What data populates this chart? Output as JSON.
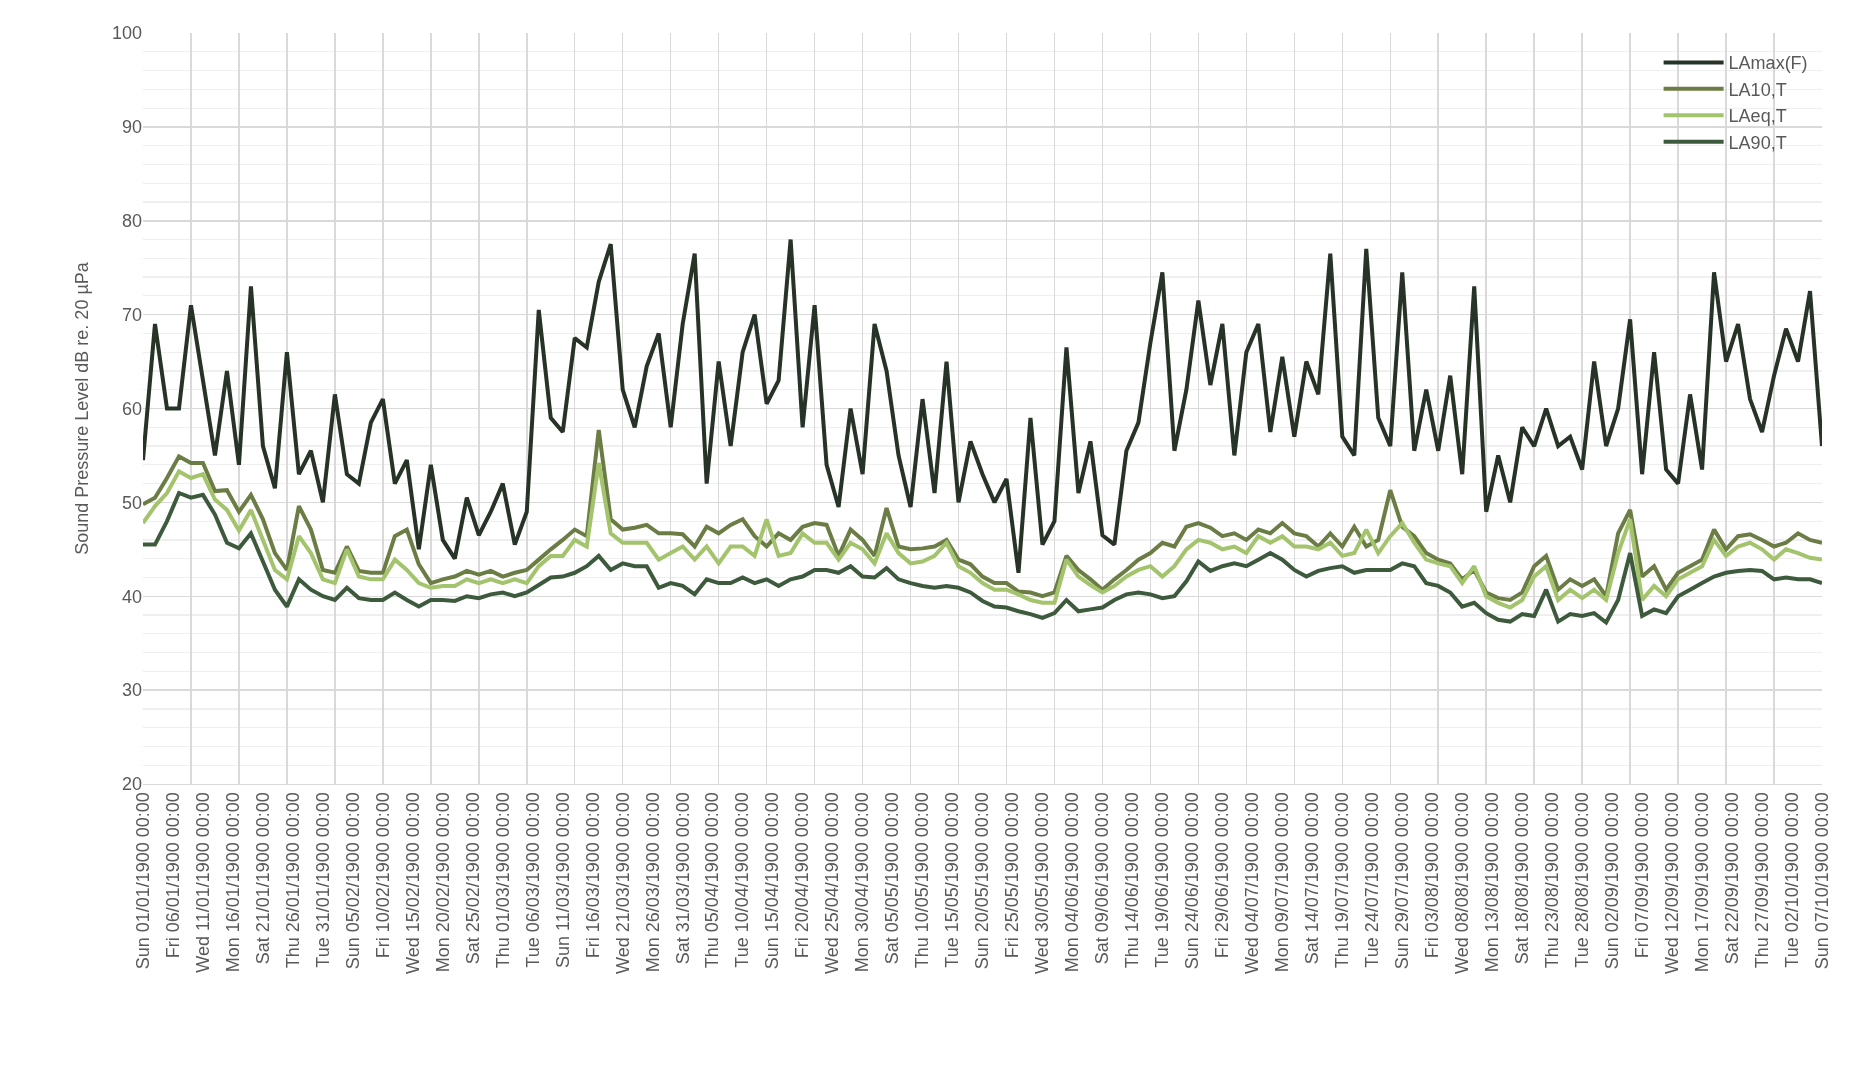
{
  "chart_data": {
    "type": "line",
    "ylabel": "Sound Pressure Level dB re. 20 µPa",
    "x": [
      "1900-01-01",
      "1900-01-03",
      "1900-01-05",
      "1900-01-07",
      "1900-01-09",
      "1900-01-11",
      "1900-01-13",
      "1900-01-15",
      "1900-01-17",
      "1900-01-19",
      "1900-01-21",
      "1900-01-23",
      "1900-01-25",
      "1900-01-27",
      "1900-01-29",
      "1900-01-31",
      "1900-02-02",
      "1900-02-04",
      "1900-02-06",
      "1900-02-08",
      "1900-02-10",
      "1900-02-12",
      "1900-02-14",
      "1900-02-16",
      "1900-02-18",
      "1900-02-20",
      "1900-02-22",
      "1900-02-24",
      "1900-02-26",
      "1900-02-28",
      "1900-03-02",
      "1900-03-04",
      "1900-03-06",
      "1900-03-08",
      "1900-03-10",
      "1900-03-12",
      "1900-03-14",
      "1900-03-16",
      "1900-03-18",
      "1900-03-20",
      "1900-03-22",
      "1900-03-24",
      "1900-03-26",
      "1900-03-28",
      "1900-03-30",
      "1900-04-01",
      "1900-04-03",
      "1900-04-05",
      "1900-04-07",
      "1900-04-09",
      "1900-04-11",
      "1900-04-13",
      "1900-04-15",
      "1900-04-17",
      "1900-04-19",
      "1900-04-21",
      "1900-04-23",
      "1900-04-25",
      "1900-04-27",
      "1900-04-29",
      "1900-05-01",
      "1900-05-03",
      "1900-05-05",
      "1900-05-07",
      "1900-05-09",
      "1900-05-11",
      "1900-05-13",
      "1900-05-15",
      "1900-05-17",
      "1900-05-19",
      "1900-05-21",
      "1900-05-23",
      "1900-05-25",
      "1900-05-27",
      "1900-05-29",
      "1900-05-31",
      "1900-06-02",
      "1900-06-04",
      "1900-06-06",
      "1900-06-08",
      "1900-06-10",
      "1900-06-12",
      "1900-06-14",
      "1900-06-16",
      "1900-06-18",
      "1900-06-20",
      "1900-06-22",
      "1900-06-24",
      "1900-06-26",
      "1900-06-28",
      "1900-06-30",
      "1900-07-02",
      "1900-07-04",
      "1900-07-06",
      "1900-07-08",
      "1900-07-10",
      "1900-07-12",
      "1900-07-14",
      "1900-07-16",
      "1900-07-18",
      "1900-07-20",
      "1900-07-22",
      "1900-07-24",
      "1900-07-26",
      "1900-07-28",
      "1900-07-30",
      "1900-08-01",
      "1900-08-03",
      "1900-08-05",
      "1900-08-07",
      "1900-08-09",
      "1900-08-11",
      "1900-08-13",
      "1900-08-15",
      "1900-08-17",
      "1900-08-19",
      "1900-08-21",
      "1900-08-23",
      "1900-08-25",
      "1900-08-27",
      "1900-08-29",
      "1900-08-31",
      "1900-09-02",
      "1900-09-04",
      "1900-09-06",
      "1900-09-08",
      "1900-09-10",
      "1900-09-12",
      "1900-09-14",
      "1900-09-16",
      "1900-09-18",
      "1900-09-20",
      "1900-09-22",
      "1900-09-24",
      "1900-09-26",
      "1900-09-28",
      "1900-09-30",
      "1900-10-02",
      "1900-10-04",
      "1900-10-06",
      "1900-10-08"
    ],
    "series": [
      {
        "name": "LAmax(F)",
        "color": "#263326",
        "values": [
          54.5,
          69,
          60,
          60,
          71,
          63,
          55,
          64,
          54,
          73,
          56,
          51.5,
          66,
          53,
          55.5,
          50,
          61.5,
          53,
          52,
          58.5,
          61,
          52,
          54.5,
          45,
          54,
          46,
          44,
          50.5,
          46.5,
          49,
          52,
          45.5,
          49,
          70.5,
          59,
          57.5,
          67.5,
          66.5,
          73.5,
          77.5,
          62,
          58,
          64.5,
          68,
          58,
          69,
          76.5,
          52,
          65,
          56,
          66,
          70,
          60.5,
          63,
          78,
          58,
          71,
          54,
          49.5,
          60,
          53,
          69,
          64,
          55,
          49.5,
          61,
          51,
          65,
          50,
          56.5,
          53,
          50,
          52.5,
          42.5,
          59,
          45.5,
          48,
          66.5,
          51,
          56.5,
          46.5,
          45.5,
          55.5,
          58.5,
          67,
          74.5,
          55.5,
          62,
          71.5,
          62.5,
          69,
          55,
          66,
          69,
          57.5,
          65.5,
          57,
          65,
          61.5,
          76.5,
          57,
          55,
          77,
          59,
          56,
          74.5,
          55.5,
          62,
          55.5,
          63.5,
          53,
          73,
          49,
          55,
          50,
          58,
          56,
          60,
          56,
          57,
          53.5,
          65,
          56,
          60,
          69.5,
          53,
          66,
          53.5,
          52,
          61.5,
          53.5,
          74.5,
          65,
          69,
          61,
          57.5,
          63.5,
          68.5,
          65,
          72.5,
          56
        ]
      },
      {
        "name": "LA10,T",
        "color": "#6b7d45",
        "values": [
          49.8,
          50.5,
          52.6,
          54.9,
          54.2,
          54.2,
          51.2,
          51.3,
          49,
          50.8,
          48.2,
          44.6,
          42.8,
          49.6,
          47.1,
          42.8,
          42.5,
          45.3,
          42.7,
          42.5,
          42.5,
          46.4,
          47.1,
          43.4,
          41.4,
          41.8,
          42.1,
          42.7,
          42.3,
          42.7,
          42.1,
          42.5,
          42.8,
          43.9,
          45,
          46,
          47.1,
          46.4,
          57.7,
          48.2,
          47.1,
          47.3,
          47.6,
          46.7,
          46.7,
          46.6,
          45.3,
          47.4,
          46.7,
          47.6,
          48.2,
          46.4,
          45.3,
          46.7,
          46,
          47.4,
          47.8,
          47.6,
          44.3,
          47.1,
          46,
          44.3,
          49.4,
          45.3,
          45,
          45.1,
          45.3,
          46,
          43.9,
          43.4,
          42.1,
          41.4,
          41.4,
          40.5,
          40.4,
          40,
          40.4,
          44.3,
          42.8,
          41.8,
          40.7,
          41.8,
          42.8,
          43.9,
          44.6,
          45.7,
          45.3,
          47.4,
          47.8,
          47.3,
          46.4,
          46.7,
          46,
          47.1,
          46.7,
          47.8,
          46.7,
          46.4,
          45.3,
          46.7,
          45.3,
          47.4,
          45.3,
          46,
          51.3,
          47.4,
          46.4,
          44.6,
          43.9,
          43.5,
          41.8,
          42.8,
          40.4,
          39.8,
          39.6,
          40.4,
          43.2,
          44.3,
          40.7,
          41.8,
          41.1,
          41.8,
          40,
          46.7,
          49.2,
          42.1,
          43.2,
          40.7,
          42.5,
          43.2,
          43.9,
          47.1,
          45,
          46.4,
          46.6,
          46,
          45.3,
          45.7,
          46.7,
          46,
          45.7
        ]
      },
      {
        "name": "LAeq,T",
        "color": "#a3c46c",
        "values": [
          47.8,
          49.6,
          51,
          53.3,
          52.6,
          53,
          50.3,
          49.2,
          47,
          49.2,
          46,
          42.8,
          41.8,
          46.4,
          44.6,
          41.8,
          41.4,
          45,
          42.1,
          41.8,
          41.8,
          43.9,
          42.8,
          41.4,
          40.9,
          41.1,
          41.1,
          41.8,
          41.4,
          41.8,
          41.4,
          41.8,
          41.4,
          43.2,
          44.3,
          44.3,
          46,
          45.3,
          54.2,
          46.7,
          45.7,
          45.7,
          45.7,
          43.9,
          44.6,
          45.3,
          43.9,
          45.3,
          43.5,
          45.3,
          45.3,
          44.3,
          48.2,
          44.3,
          44.6,
          46.7,
          45.7,
          45.7,
          43.9,
          45.7,
          45,
          43.5,
          46.7,
          44.6,
          43.5,
          43.7,
          44.3,
          45.7,
          43.2,
          42.5,
          41.4,
          40.7,
          40.7,
          40.2,
          39.6,
          39.3,
          39.3,
          43.9,
          42.1,
          41.2,
          40.4,
          41.1,
          42.1,
          42.8,
          43.2,
          42.1,
          43.2,
          45,
          46,
          45.7,
          45,
          45.3,
          44.6,
          46.4,
          45.7,
          46.4,
          45.3,
          45.3,
          45,
          45.7,
          44.3,
          44.6,
          47.1,
          44.6,
          46.4,
          47.8,
          45.7,
          43.9,
          43.5,
          43.2,
          41.4,
          43.2,
          40,
          39.3,
          38.8,
          39.6,
          42.1,
          43.2,
          39.6,
          40.7,
          39.8,
          40.7,
          39.6,
          44.6,
          48.2,
          39.6,
          41.1,
          40,
          41.8,
          42.5,
          43.2,
          46,
          44.3,
          45.3,
          45.7,
          45,
          43.9,
          45,
          44.6,
          44.1,
          43.9
        ]
      },
      {
        "name": "LA90,T",
        "color": "#3d5a3c",
        "values": [
          45.5,
          45.5,
          48,
          51,
          50.5,
          50.8,
          48.7,
          45.7,
          45.1,
          46.7,
          43.7,
          40.7,
          38.9,
          41.8,
          40.7,
          40,
          39.6,
          40.9,
          39.8,
          39.6,
          39.6,
          40.4,
          39.6,
          38.9,
          39.6,
          39.6,
          39.5,
          40,
          39.8,
          40.2,
          40.4,
          40,
          40.4,
          41.2,
          42,
          42.1,
          42.5,
          43.2,
          44.3,
          42.8,
          43.5,
          43.2,
          43.2,
          40.9,
          41.4,
          41.1,
          40.2,
          41.8,
          41.4,
          41.4,
          42,
          41.4,
          41.8,
          41.1,
          41.8,
          42.1,
          42.8,
          42.8,
          42.5,
          43.2,
          42.1,
          42,
          43,
          41.8,
          41.4,
          41.1,
          40.9,
          41.1,
          40.9,
          40.4,
          39.5,
          38.9,
          38.8,
          38.4,
          38.1,
          37.7,
          38.2,
          39.6,
          38.4,
          38.6,
          38.8,
          39.6,
          40.2,
          40.4,
          40.2,
          39.8,
          40,
          41.6,
          43.7,
          42.7,
          43.2,
          43.5,
          43.2,
          43.9,
          44.6,
          43.9,
          42.8,
          42.1,
          42.7,
          43,
          43.2,
          42.5,
          42.8,
          42.8,
          42.8,
          43.5,
          43.2,
          41.4,
          41.1,
          40.4,
          38.9,
          39.3,
          38.2,
          37.5,
          37.3,
          38.1,
          37.9,
          40.7,
          37.3,
          38.1,
          37.9,
          38.2,
          37.2,
          39.6,
          44.6,
          37.9,
          38.6,
          38.2,
          40,
          40.7,
          41.4,
          42.1,
          42.5,
          42.7,
          42.8,
          42.7,
          41.8,
          42,
          41.8,
          41.8,
          41.4
        ]
      }
    ],
    "xlim": [
      "1900-01-01",
      "1900-10-08"
    ],
    "xticks": [
      {
        "value": "1900-01-01",
        "label": "Sun 01/01/1900 00:00"
      },
      {
        "value": "1900-01-06",
        "label": "Fri 06/01/1900 00:00"
      },
      {
        "value": "1900-01-11",
        "label": "Wed 11/01/1900 00:00"
      },
      {
        "value": "1900-01-16",
        "label": "Mon 16/01/1900 00:00"
      },
      {
        "value": "1900-01-21",
        "label": "Sat 21/01/1900 00:00"
      },
      {
        "value": "1900-01-26",
        "label": "Thu 26/01/1900 00:00"
      },
      {
        "value": "1900-01-31",
        "label": "Tue 31/01/1900 00:00"
      },
      {
        "value": "1900-02-05",
        "label": "Sun 05/02/1900 00:00"
      },
      {
        "value": "1900-02-10",
        "label": "Fri 10/02/1900 00:00"
      },
      {
        "value": "1900-02-15",
        "label": "Wed 15/02/1900 00:00"
      },
      {
        "value": "1900-02-20",
        "label": "Mon 20/02/1900 00:00"
      },
      {
        "value": "1900-02-25",
        "label": "Sat 25/02/1900 00:00"
      },
      {
        "value": "1900-03-02",
        "label": "Thu 01/03/1900 00:00"
      },
      {
        "value": "1900-03-07",
        "label": "Tue 06/03/1900 00:00"
      },
      {
        "value": "1900-03-12",
        "label": "Sun 11/03/1900 00:00"
      },
      {
        "value": "1900-03-17",
        "label": "Fri 16/03/1900 00:00"
      },
      {
        "value": "1900-03-22",
        "label": "Wed 21/03/1900 00:00"
      },
      {
        "value": "1900-03-27",
        "label": "Mon 26/03/1900 00:00"
      },
      {
        "value": "1900-04-01",
        "label": "Sat 31/03/1900 00:00"
      },
      {
        "value": "1900-04-06",
        "label": "Thu 05/04/1900 00:00"
      },
      {
        "value": "1900-04-11",
        "label": "Tue 10/04/1900 00:00"
      },
      {
        "value": "1900-04-16",
        "label": "Sun 15/04/1900 00:00"
      },
      {
        "value": "1900-04-21",
        "label": "Fri 20/04/1900 00:00"
      },
      {
        "value": "1900-04-26",
        "label": "Wed 25/04/1900 00:00"
      },
      {
        "value": "1900-05-01",
        "label": "Mon 30/04/1900 00:00"
      },
      {
        "value": "1900-05-06",
        "label": "Sat 05/05/1900 00:00"
      },
      {
        "value": "1900-05-11",
        "label": "Thu 10/05/1900 00:00"
      },
      {
        "value": "1900-05-16",
        "label": "Tue 15/05/1900 00:00"
      },
      {
        "value": "1900-05-21",
        "label": "Sun 20/05/1900 00:00"
      },
      {
        "value": "1900-05-26",
        "label": "Fri 25/05/1900 00:00"
      },
      {
        "value": "1900-05-31",
        "label": "Wed 30/05/1900 00:00"
      },
      {
        "value": "1900-06-05",
        "label": "Mon 04/06/1900 00:00"
      },
      {
        "value": "1900-06-10",
        "label": "Sat 09/06/1900 00:00"
      },
      {
        "value": "1900-06-15",
        "label": "Thu 14/06/1900 00:00"
      },
      {
        "value": "1900-06-20",
        "label": "Tue 19/06/1900 00:00"
      },
      {
        "value": "1900-06-25",
        "label": "Sun 24/06/1900 00:00"
      },
      {
        "value": "1900-06-30",
        "label": "Fri 29/06/1900 00:00"
      },
      {
        "value": "1900-07-05",
        "label": "Wed 04/07/1900 00:00"
      },
      {
        "value": "1900-07-10",
        "label": "Mon 09/07/1900 00:00"
      },
      {
        "value": "1900-07-15",
        "label": "Sat 14/07/1900 00:00"
      },
      {
        "value": "1900-07-20",
        "label": "Thu 19/07/1900 00:00"
      },
      {
        "value": "1900-07-25",
        "label": "Tue 24/07/1900 00:00"
      },
      {
        "value": "1900-07-30",
        "label": "Sun 29/07/1900 00:00"
      },
      {
        "value": "1900-08-04",
        "label": "Fri 03/08/1900 00:00"
      },
      {
        "value": "1900-08-09",
        "label": "Wed 08/08/1900 00:00"
      },
      {
        "value": "1900-08-14",
        "label": "Mon 13/08/1900 00:00"
      },
      {
        "value": "1900-08-19",
        "label": "Sat 18/08/1900 00:00"
      },
      {
        "value": "1900-08-24",
        "label": "Thu 23/08/1900 00:00"
      },
      {
        "value": "1900-08-29",
        "label": "Tue 28/08/1900 00:00"
      },
      {
        "value": "1900-09-03",
        "label": "Sun 02/09/1900 00:00"
      },
      {
        "value": "1900-09-08",
        "label": "Fri 07/09/1900 00:00"
      },
      {
        "value": "1900-09-13",
        "label": "Wed 12/09/1900 00:00"
      },
      {
        "value": "1900-09-18",
        "label": "Mon 17/09/1900 00:00"
      },
      {
        "value": "1900-09-23",
        "label": "Sat 22/09/1900 00:00"
      },
      {
        "value": "1900-09-28",
        "label": "Thu 27/09/1900 00:00"
      },
      {
        "value": "1900-10-03",
        "label": "Tue 02/10/1900 00:00"
      },
      {
        "value": "1900-10-08",
        "label": "Sun 07/10/1900 00:00"
      },
      {
        "value": "1900-01-09",
        "label": null
      },
      {
        "value": "1900-01-17",
        "label": null
      },
      {
        "value": "1900-01-25",
        "label": null
      },
      {
        "value": "1900-02-02",
        "label": null
      },
      {
        "value": "1900-02-10",
        "label": null
      },
      {
        "value": "1900-02-18",
        "label": null
      },
      {
        "value": "1900-02-26",
        "label": null
      },
      {
        "value": "1900-03-06",
        "label": null
      },
      {
        "value": "1900-03-14",
        "label": null
      },
      {
        "value": "1900-03-22",
        "label": null
      },
      {
        "value": "1900-03-30",
        "label": null
      },
      {
        "value": "1900-04-07",
        "label": null
      },
      {
        "value": "1900-04-15",
        "label": null
      },
      {
        "value": "1900-04-23",
        "label": null
      },
      {
        "value": "1900-05-01",
        "label": null
      },
      {
        "value": "1900-05-09",
        "label": null
      },
      {
        "value": "1900-05-17",
        "label": null
      },
      {
        "value": "1900-05-25",
        "label": null
      },
      {
        "value": "1900-06-02",
        "label": null
      },
      {
        "value": "1900-06-10",
        "label": null
      },
      {
        "value": "1900-06-18",
        "label": null
      },
      {
        "value": "1900-06-26",
        "label": null
      },
      {
        "value": "1900-07-04",
        "label": null
      },
      {
        "value": "1900-07-12",
        "label": null
      },
      {
        "value": "1900-07-20",
        "label": null
      },
      {
        "value": "1900-07-28",
        "label": null
      },
      {
        "value": "1900-08-05",
        "label": null
      },
      {
        "value": "1900-08-13",
        "label": null
      },
      {
        "value": "1900-08-21",
        "label": null
      },
      {
        "value": "1900-08-29",
        "label": null
      },
      {
        "value": "1900-09-06",
        "label": null
      },
      {
        "value": "1900-09-14",
        "label": null
      },
      {
        "value": "1900-09-22",
        "label": null
      },
      {
        "value": "1900-09-30",
        "label": null
      }
    ],
    "ylim": [
      20,
      100
    ],
    "yticks": [
      20,
      30,
      40,
      50,
      60,
      70,
      80,
      90,
      100
    ],
    "grid": true,
    "legend": "top right",
    "marker": "none",
    "line_style": "solid"
  }
}
